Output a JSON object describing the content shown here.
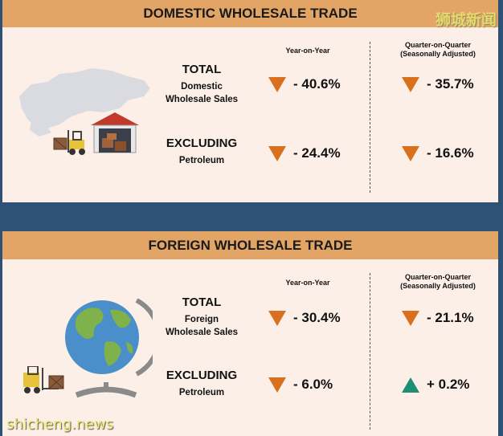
{
  "domestic": {
    "title": "DOMESTIC WHOLESALE TRADE",
    "col_yoy": "Year-on-Year",
    "col_qoq_line1": "Quarter-on-Quarter",
    "col_qoq_line2": "(Seasonally Adjusted)",
    "total": {
      "heading": "TOTAL",
      "sub_line1": "Domestic",
      "sub_line2": "Wholesale Sales",
      "yoy": "- 40.6%",
      "qoq": "- 35.7%",
      "yoy_dir": "down",
      "qoq_dir": "down"
    },
    "excluding": {
      "heading": "EXCLUDING",
      "sub": "Petroleum",
      "yoy": "- 24.4%",
      "qoq": "- 16.6%",
      "yoy_dir": "down",
      "qoq_dir": "down"
    }
  },
  "foreign": {
    "title": "FOREIGN WHOLESALE TRADE",
    "col_yoy": "Year-on-Year",
    "col_qoq_line1": "Quarter-on-Quarter",
    "col_qoq_line2": "(Seasonally Adjusted)",
    "total": {
      "heading": "TOTAL",
      "sub_line1": "Foreign",
      "sub_line2": "Wholesale Sales",
      "yoy": "- 30.4%",
      "qoq": "- 21.1%",
      "yoy_dir": "down",
      "qoq_dir": "down"
    },
    "excluding": {
      "heading": "EXCLUDING",
      "sub": "Petroleum",
      "yoy": "- 6.0%",
      "qoq": "+ 0.2%",
      "yoy_dir": "down",
      "qoq_dir": "up"
    }
  },
  "watermark_cn": "狮城新闻",
  "watermark_en": "shicheng.news",
  "colors": {
    "down": "#d8701e",
    "up": "#1f8f73",
    "header": "#e3a566",
    "panel": "#fcefe8",
    "background": "#2e5275"
  },
  "icons": [
    "singapore-map-icon",
    "warehouse-icon",
    "forklift-icon",
    "globe-icon"
  ]
}
